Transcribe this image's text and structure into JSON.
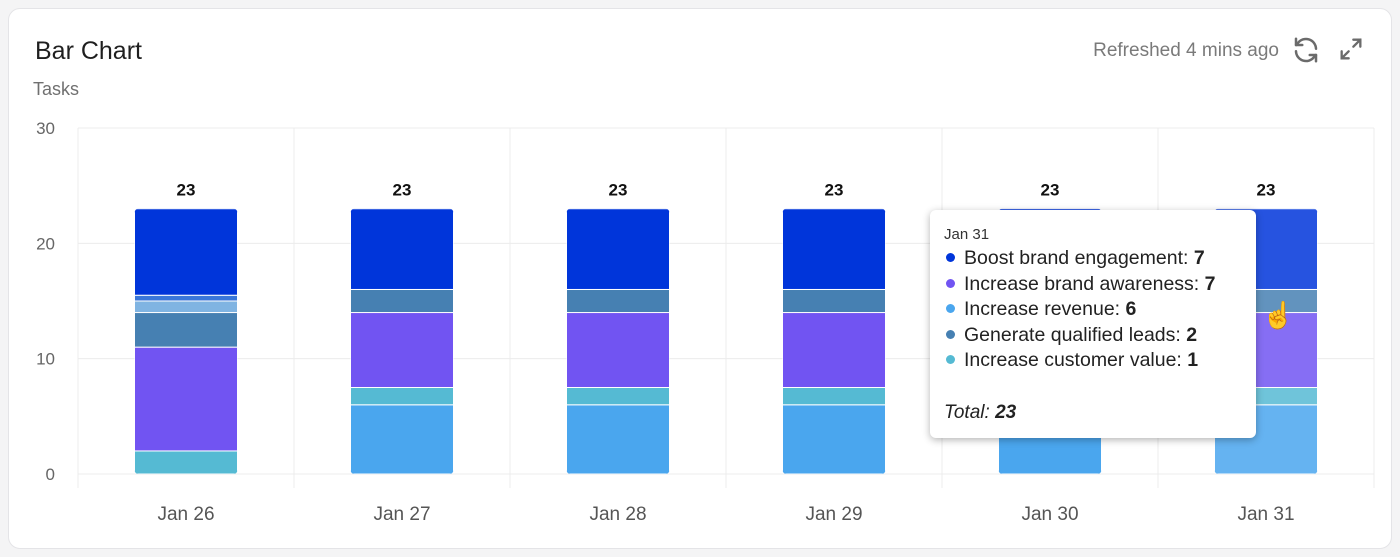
{
  "header": {
    "title": "Bar Chart",
    "subtitle": "Tasks",
    "refreshed": "Refreshed 4 mins ago",
    "refresh_icon": "refresh-icon",
    "expand_icon": "expand-icon"
  },
  "chart_data": {
    "type": "bar",
    "stacked": true,
    "categories": [
      "Jan 26",
      "Jan 27",
      "Jan 28",
      "Jan 29",
      "Jan 30",
      "Jan 31"
    ],
    "ylim": [
      0,
      30
    ],
    "yticks": [
      "0",
      "10",
      "20",
      "30"
    ],
    "grid": true,
    "totals": [
      "23",
      "23",
      "23",
      "23",
      "23",
      "23"
    ],
    "series": [
      {
        "name": "Increase revenue",
        "color": "#4aa6ee",
        "values": [
          0,
          6,
          6,
          6,
          6,
          6
        ]
      },
      {
        "name": "Increase customer value",
        "color": "#55bad3",
        "values": [
          2,
          1.5,
          1.5,
          1.5,
          1.5,
          1.5
        ]
      },
      {
        "name": "Increase brand awareness",
        "color": "#7154f2",
        "values": [
          9,
          6.5,
          6.5,
          6.5,
          6.5,
          6.5
        ]
      },
      {
        "name": "Generate qualified leads",
        "color": "#4680b2",
        "values": [
          3,
          2,
          2,
          2,
          2,
          2
        ]
      },
      {
        "color": "#80b4e2",
        "values": [
          1,
          0,
          0,
          0,
          0,
          0
        ]
      },
      {
        "color": "#3976d9",
        "values": [
          0.5,
          0,
          0,
          0,
          0,
          0
        ]
      },
      {
        "name": "Boost brand engagement",
        "color": "#0035da",
        "values": [
          7.5,
          7,
          7,
          7,
          7,
          7
        ]
      }
    ],
    "highlighted_category": "Jan 31"
  },
  "tooltip": {
    "date": "Jan 31",
    "rows": [
      {
        "label": "Boost brand engagement: ",
        "value": "7",
        "color": "#0035da"
      },
      {
        "label": "Increase brand awareness: ",
        "value": "7",
        "color": "#7154f2"
      },
      {
        "label": "Increase revenue: ",
        "value": "6",
        "color": "#4aa6ee"
      },
      {
        "label": "Generate qualified leads: ",
        "value": "2",
        "color": "#4680b2"
      },
      {
        "label": "Increase customer value: ",
        "value": "1",
        "color": "#55bad3"
      }
    ],
    "total_label": "Total: ",
    "total_value": "23"
  }
}
